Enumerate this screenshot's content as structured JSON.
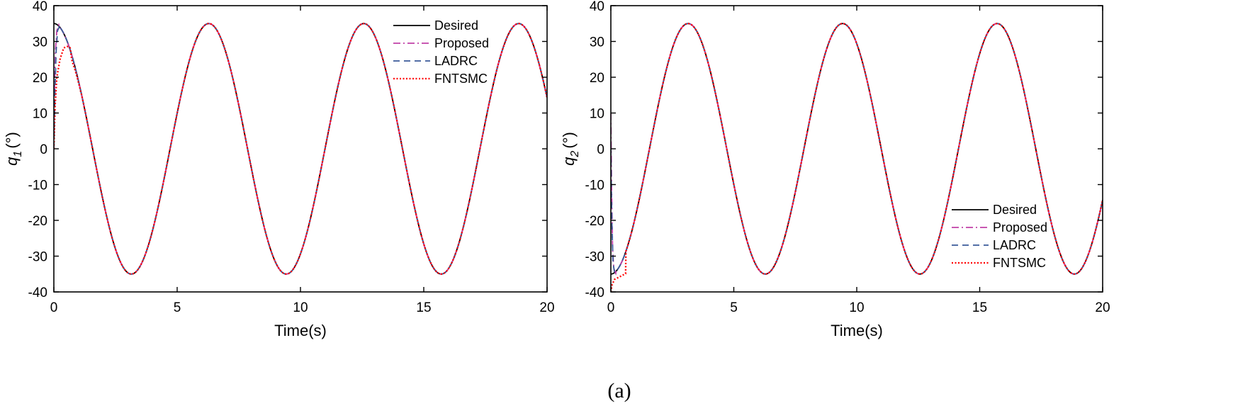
{
  "caption": "(a)",
  "colors": {
    "Desired": "#000000",
    "Proposed": "#c040a8",
    "LADRC": "#3a5a9a",
    "FNTSMC": "#ff0000"
  },
  "chart_data": [
    {
      "type": "line",
      "title": "",
      "xlabel": "Time(s)",
      "ylabel_main": "q",
      "ylabel_sub": "1",
      "ylabel_unit": "(°)",
      "xlim": [
        0,
        20
      ],
      "ylim": [
        -40,
        40
      ],
      "xticks": [
        0,
        5,
        10,
        15,
        20
      ],
      "yticks": [
        -40,
        -30,
        -20,
        -10,
        0,
        10,
        20,
        30,
        40
      ],
      "grid": false,
      "legend_position": "top-right",
      "reference": {
        "form": "35*cos(t)",
        "amplitude": 35,
        "period": 6.2832
      },
      "series": [
        {
          "name": "Desired",
          "style": "solid",
          "initial": [
            [
              0,
              35
            ]
          ]
        },
        {
          "name": "Proposed",
          "style": "dashdot",
          "initial": [
            [
              0,
              0
            ],
            [
              0.03,
              18
            ],
            [
              0.07,
              28
            ],
            [
              0.12,
              33
            ],
            [
              0.2,
              34.6
            ]
          ]
        },
        {
          "name": "LADRC",
          "style": "dashed",
          "initial": [
            [
              0,
              0
            ],
            [
              0.04,
              14
            ],
            [
              0.09,
              27
            ],
            [
              0.15,
              33
            ],
            [
              0.25,
              34.6
            ]
          ]
        },
        {
          "name": "FNTSMC",
          "style": "dotted",
          "initial": [
            [
              0,
              0
            ],
            [
              0.05,
              12
            ],
            [
              0.12,
              20
            ],
            [
              0.25,
              25
            ],
            [
              0.4,
              28.2
            ],
            [
              0.55,
              28.6
            ],
            [
              0.65,
              28.4
            ]
          ]
        }
      ],
      "legend": [
        "Desired",
        "Proposed",
        "LADRC",
        "FNTSMC"
      ]
    },
    {
      "type": "line",
      "title": "",
      "xlabel": "Time(s)",
      "ylabel_main": "q",
      "ylabel_sub": "2",
      "ylabel_unit": "(°)",
      "xlim": [
        0,
        20
      ],
      "ylim": [
        -40,
        40
      ],
      "xticks": [
        0,
        5,
        10,
        15,
        20
      ],
      "yticks": [
        -40,
        -30,
        -20,
        -10,
        0,
        10,
        20,
        30,
        40
      ],
      "grid": false,
      "legend_position": "bottom-right",
      "reference": {
        "form": "-35*cos(t)",
        "amplitude": -35,
        "period": 6.2832
      },
      "series": [
        {
          "name": "Desired",
          "style": "solid",
          "initial": [
            [
              0,
              -35
            ]
          ]
        },
        {
          "name": "Proposed",
          "style": "dashdot",
          "initial": [
            [
              0,
              10
            ],
            [
              0.03,
              -10
            ],
            [
              0.07,
              -28
            ],
            [
              0.12,
              -33.5
            ],
            [
              0.2,
              -34.8
            ]
          ]
        },
        {
          "name": "LADRC",
          "style": "dashed",
          "initial": [
            [
              0,
              0
            ],
            [
              0.04,
              -20
            ],
            [
              0.09,
              -32
            ],
            [
              0.15,
              -34.5
            ]
          ]
        },
        {
          "name": "FNTSMC",
          "style": "dotted",
          "initial": [
            [
              0,
              -40
            ],
            [
              0.05,
              -38
            ],
            [
              0.15,
              -36.5
            ],
            [
              0.35,
              -35.8
            ],
            [
              0.6,
              -34.9
            ]
          ]
        }
      ],
      "legend": [
        "Desired",
        "Proposed",
        "LADRC",
        "FNTSMC"
      ]
    }
  ]
}
